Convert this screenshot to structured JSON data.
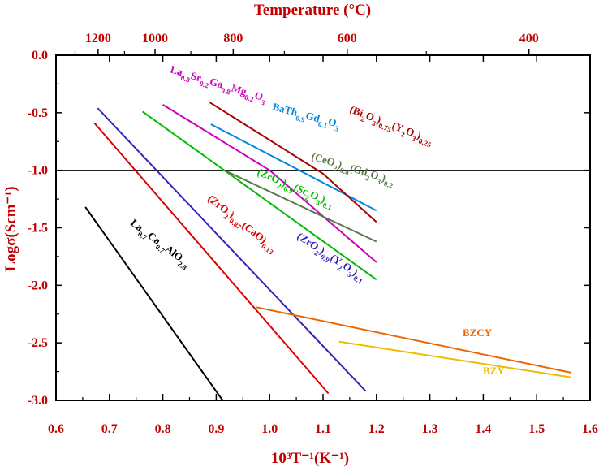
{
  "chart_data": {
    "type": "line",
    "title": "",
    "xlabel": "10³T⁻¹(K⁻¹)",
    "ylabel": "Logσ(Scm⁻¹)",
    "top_axis_label": "Temperature (°C)",
    "xlim": [
      0.6,
      1.6
    ],
    "ylim": [
      -3.0,
      0.0
    ],
    "x_ticks": [
      0.6,
      0.7,
      0.8,
      0.9,
      1.0,
      1.1,
      1.2,
      1.3,
      1.4,
      1.5,
      1.6
    ],
    "x_tick_labels": [
      "0.6",
      "0.7",
      "0.8",
      "0.9",
      "1.0",
      "1.1",
      "1.2",
      "1.3",
      "1.4",
      "1.5",
      "1.6"
    ],
    "y_ticks": [
      0.0,
      -0.5,
      -1.0,
      -1.5,
      -2.0,
      -2.5,
      -3.0
    ],
    "y_tick_labels": [
      "0.0",
      "-0.5",
      "-1.0",
      "-1.5",
      "-2.0",
      "-2.5",
      "-3.0"
    ],
    "top_ticks": [
      {
        "celsius": 1200,
        "label": "1200"
      },
      {
        "celsius": 1000,
        "label": "1000"
      },
      {
        "celsius": 800,
        "label": "800"
      },
      {
        "celsius": 600,
        "label": "600"
      },
      {
        "celsius": 400,
        "label": "400"
      }
    ],
    "reference_line": {
      "y": -1.0,
      "color": "#000000"
    },
    "series": [
      {
        "name": "La0.7Ca0.7AlO2.8",
        "color": "#000000",
        "x": [
          0.655,
          0.912
        ],
        "y": [
          -1.32,
          -3.0
        ],
        "label": [
          {
            "t": "La"
          },
          {
            "t": "0.7",
            "sub": true
          },
          {
            "t": "Ca"
          },
          {
            "t": "0.7",
            "sub": true
          },
          {
            "t": "AlO"
          },
          {
            "t": "2.8",
            "sub": true
          }
        ]
      },
      {
        "name": "(ZrO2)0.87(CaO)0.13",
        "color": "#dd0000",
        "x": [
          0.672,
          1.11
        ],
        "y": [
          -0.59,
          -2.94
        ],
        "label": [
          {
            "t": "(ZrO"
          },
          {
            "t": "2",
            "sub": true
          },
          {
            "t": ")"
          },
          {
            "t": "0.87",
            "sub": true
          },
          {
            "t": "(CaO)"
          },
          {
            "t": "0.13",
            "sub": true
          }
        ]
      },
      {
        "name": "(ZrO2)0.9(Y2O3)0.1",
        "color": "#3322bb",
        "x": [
          0.678,
          1.18
        ],
        "y": [
          -0.46,
          -2.92
        ],
        "label": [
          {
            "t": "(ZrO"
          },
          {
            "t": "2",
            "sub": true
          },
          {
            "t": ")"
          },
          {
            "t": "0.9",
            "sub": true
          },
          {
            "t": "(Y"
          },
          {
            "t": "2",
            "sub": true
          },
          {
            "t": "O"
          },
          {
            "t": "3",
            "sub": true
          },
          {
            "t": ")"
          },
          {
            "t": "0.1",
            "sub": true
          }
        ]
      },
      {
        "name": "(ZrO2)0.9(Sc2O3)0.1",
        "color": "#00bb00",
        "x": [
          0.762,
          1.2
        ],
        "y": [
          -0.49,
          -1.95
        ],
        "label": [
          {
            "t": "(ZrO"
          },
          {
            "t": "2",
            "sub": true
          },
          {
            "t": ")"
          },
          {
            "t": "0.9",
            "sub": true
          },
          {
            "t": "(Sc"
          },
          {
            "t": "2",
            "sub": true
          },
          {
            "t": "O"
          },
          {
            "t": "3",
            "sub": true
          },
          {
            "t": ")"
          },
          {
            "t": "0.1",
            "sub": true
          }
        ]
      },
      {
        "name": "La0.8Sr0.2Ga0.8Mg0.2O3",
        "color": "#cc00bb",
        "x": [
          0.8,
          1.0,
          1.2
        ],
        "y": [
          -0.43,
          -1.0,
          -1.8
        ],
        "label": [
          {
            "t": "La"
          },
          {
            "t": "0.8",
            "sub": true
          },
          {
            "t": "Sr"
          },
          {
            "t": "0.2",
            "sub": true
          },
          {
            "t": "Ga"
          },
          {
            "t": "0.8",
            "sub": true
          },
          {
            "t": "Mg"
          },
          {
            "t": "0.2",
            "sub": true
          },
          {
            "t": "O"
          },
          {
            "t": "3",
            "sub": true
          }
        ]
      },
      {
        "name": "BaTh0.9Gd0.1O3",
        "color": "#0088dd",
        "x": [
          0.89,
          1.2
        ],
        "y": [
          -0.6,
          -1.35
        ],
        "label": [
          {
            "t": "BaTh"
          },
          {
            "t": "0.9",
            "sub": true
          },
          {
            "t": "Gd"
          },
          {
            "t": "0.1",
            "sub": true
          },
          {
            "t": "O"
          },
          {
            "t": "3",
            "sub": true
          }
        ]
      },
      {
        "name": "(Bi2O3)0.75(Y2O3)0.25",
        "color": "#aa0000",
        "x": [
          0.888,
          1.1,
          1.2
        ],
        "y": [
          -0.41,
          -1.03,
          -1.45
        ],
        "label": [
          {
            "t": "(Bi"
          },
          {
            "t": "2",
            "sub": true
          },
          {
            "t": "O"
          },
          {
            "t": "3",
            "sub": true
          },
          {
            "t": ")"
          },
          {
            "t": "0.75",
            "sub": true
          },
          {
            "t": "(Y"
          },
          {
            "t": "2",
            "sub": true
          },
          {
            "t": "O"
          },
          {
            "t": "3",
            "sub": true
          },
          {
            "t": ")"
          },
          {
            "t": "0.25",
            "sub": true
          }
        ]
      },
      {
        "name": "(CeO2)0.8(Gd2O3)0.2",
        "color": "#5a7a4a",
        "x": [
          0.915,
          1.2
        ],
        "y": [
          -1.0,
          -1.62
        ],
        "label": [
          {
            "t": "(CeO"
          },
          {
            "t": "2",
            "sub": true
          },
          {
            "t": ")"
          },
          {
            "t": "0.8",
            "sub": true
          },
          {
            "t": "(Gd"
          },
          {
            "t": "2",
            "sub": true
          },
          {
            "t": "O"
          },
          {
            "t": "3",
            "sub": true
          },
          {
            "t": ")"
          },
          {
            "t": "0.2",
            "sub": true
          }
        ]
      },
      {
        "name": "BZCY",
        "color": "#ee6600",
        "x": [
          0.975,
          1.565
        ],
        "y": [
          -2.19,
          -2.76
        ],
        "label": [
          {
            "t": "BZCY"
          }
        ]
      },
      {
        "name": "BZY",
        "color": "#eebb00",
        "x": [
          1.13,
          1.565
        ],
        "y": [
          -2.49,
          -2.8
        ],
        "label": [
          {
            "t": "BZY"
          }
        ]
      }
    ]
  }
}
